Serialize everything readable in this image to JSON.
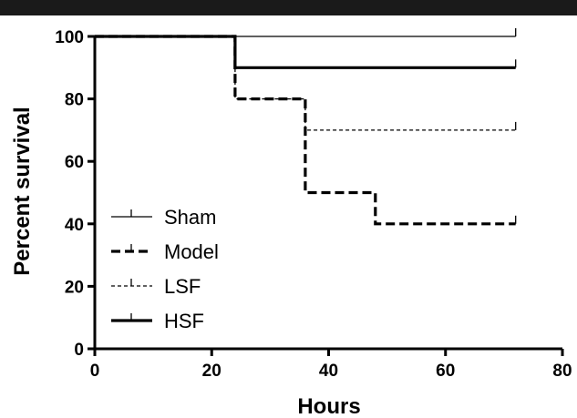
{
  "chart_data": {
    "type": "line",
    "subtype": "kaplan-meier step",
    "title": "",
    "xlabel": "Hours",
    "ylabel": "Percent survival",
    "xlim": [
      0,
      80
    ],
    "ylim": [
      0,
      100
    ],
    "xticks": [
      "0",
      "20",
      "40",
      "60",
      "80"
    ],
    "yticks": [
      "0",
      "20",
      "40",
      "60",
      "80",
      "100"
    ],
    "grid": false,
    "legend_position": "bottom-left",
    "series": [
      {
        "name": "Sham",
        "style": "thin-solid",
        "color": "#000000",
        "x": [
          0,
          72
        ],
        "y": [
          100,
          100
        ]
      },
      {
        "name": "Model",
        "style": "thick-dashed",
        "color": "#000000",
        "x": [
          0,
          24,
          24,
          36,
          36,
          48,
          48,
          72
        ],
        "y": [
          100,
          100,
          80,
          80,
          50,
          50,
          40,
          40
        ]
      },
      {
        "name": "LSF",
        "style": "thin-dashed",
        "color": "#000000",
        "x": [
          0,
          24,
          24,
          36,
          36,
          72
        ],
        "y": [
          100,
          100,
          80,
          80,
          70,
          70
        ]
      },
      {
        "name": "HSF",
        "style": "thick-solid",
        "color": "#000000",
        "x": [
          0,
          24,
          24,
          72
        ],
        "y": [
          100,
          100,
          90,
          90
        ]
      }
    ]
  }
}
